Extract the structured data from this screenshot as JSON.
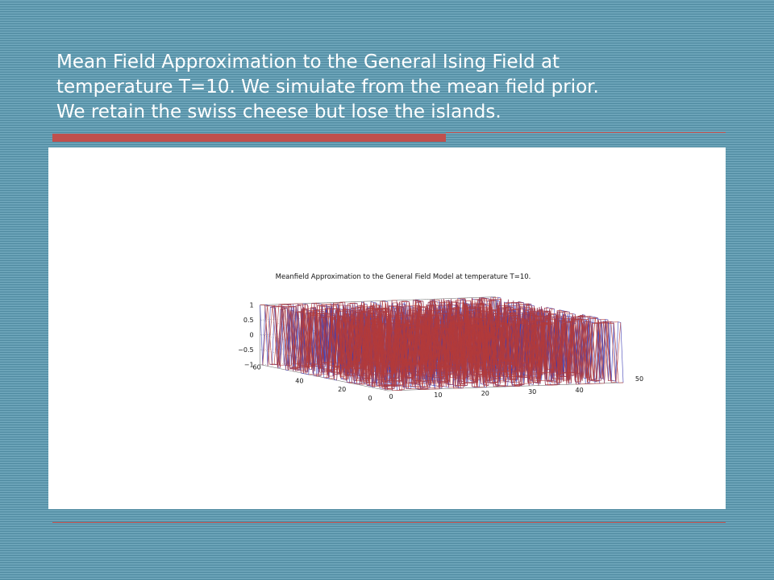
{
  "slide": {
    "title_lines": [
      "Mean Field Approximation to the General Ising Field at",
      "temperature T=10.  We simulate from the mean field prior.",
      "We retain the swiss cheese but lose the islands."
    ]
  },
  "colors": {
    "background": "#5e98ad",
    "accent": "#c0504d",
    "mesh_front": "#b33b3b",
    "mesh_back": "#3b3bb3"
  },
  "chart_data": {
    "type": "surface",
    "title": "Meanfield Approximation to the General Field Model at temperature T=10.",
    "xlabel": "",
    "ylabel": "",
    "zlabel": "",
    "xlim": [
      0,
      50
    ],
    "ylim": [
      0,
      60
    ],
    "zlim": [
      -1,
      1
    ],
    "x_ticks": [
      "0",
      "10",
      "20",
      "30",
      "40",
      "50"
    ],
    "y_ticks": [
      "0",
      "20",
      "40",
      "60"
    ],
    "z_ticks": [
      "1",
      "0.5",
      "0",
      "−0.5",
      "−1"
    ],
    "grid": true,
    "grid_size": 50,
    "values_description": "",
    "value_set": [
      -1,
      1
    ]
  }
}
